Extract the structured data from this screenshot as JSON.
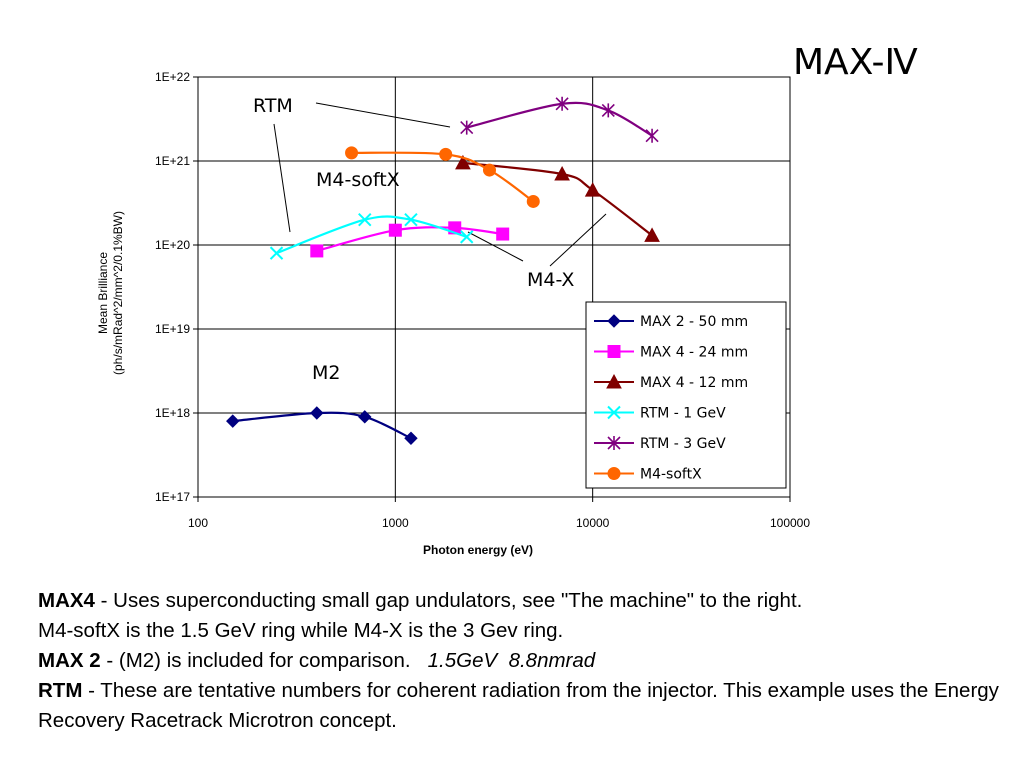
{
  "slide": {
    "title": "MAX-Ⅳ",
    "paragraphs": {
      "p1_bold": "MAX4",
      "p1_text": " - Uses superconducting small gap undulators, see \"The machine\" to the right.",
      "p2_text": "M4-softX is the 1.5 GeV ring while M4-X is the 3 Gev ring.",
      "p3_bold": "MAX 2",
      "p3_text": " - (M2) is included for comparison.",
      "p3_italic_1": "1.5GeV",
      "p3_italic_2": "8.8nmrad",
      "p4_bold": "RTM",
      "p4_text": " - These are tentative numbers for coherent radiation from the injector. This example uses the Energy Recovery Racetrack Microtron concept."
    }
  },
  "chart_data": {
    "type": "line",
    "xlabel": "Photon energy (eV)",
    "ylabel_line1": "Mean Brilliance",
    "ylabel_line2": "(ph/s/mRad^2/mm^2/0.1%BW)",
    "x_scale": "log",
    "y_scale": "log",
    "xlim": [
      100,
      100000
    ],
    "ylim": [
      1e+17,
      1e+22
    ],
    "x_ticks": [
      {
        "v": 100,
        "label": "100"
      },
      {
        "v": 1000,
        "label": "1000"
      },
      {
        "v": 10000,
        "label": "10000"
      },
      {
        "v": 100000,
        "label": "100000"
      }
    ],
    "y_ticks": [
      {
        "v": 1e+17,
        "label": "1E+17"
      },
      {
        "v": 1e+18,
        "label": "1E+18"
      },
      {
        "v": 1e+19,
        "label": "1E+19"
      },
      {
        "v": 1e+20,
        "label": "1E+20"
      },
      {
        "v": 1e+21,
        "label": "1E+21"
      },
      {
        "v": 1e+22,
        "label": "1E+22"
      }
    ],
    "grid": "major gridlines on both axes",
    "legend_position": "bottom-right",
    "series": [
      {
        "name": "MAX 2 - 50 mm",
        "color": "#000080",
        "marker": "diamond",
        "points": [
          [
            150,
            8e+17
          ],
          [
            400,
            1e+18
          ],
          [
            700,
            9e+17
          ],
          [
            1200,
            5e+17
          ]
        ]
      },
      {
        "name": "MAX 4 - 24 mm",
        "color": "#ff00ff",
        "marker": "square",
        "points": [
          [
            400,
            8.5e+19
          ],
          [
            1000,
            1.5e+20
          ],
          [
            2000,
            1.6e+20
          ],
          [
            3500,
            1.35e+20
          ]
        ]
      },
      {
        "name": "MAX 4 - 12 mm",
        "color": "#800000",
        "marker": "triangle",
        "points": [
          [
            2200,
            9.5e+20
          ],
          [
            7000,
            7e+20
          ],
          [
            10000,
            4.5e+20
          ],
          [
            20000,
            1.3e+20
          ]
        ]
      },
      {
        "name": "RTM - 1 GeV",
        "color": "#00ffff",
        "marker": "x",
        "points": [
          [
            250,
            8e+19
          ],
          [
            700,
            2e+20
          ],
          [
            1200,
            2e+20
          ],
          [
            2300,
            1.25e+20
          ]
        ]
      },
      {
        "name": "RTM - 3 GeV",
        "color": "#800080",
        "marker": "star",
        "points": [
          [
            2300,
            2.5e+21
          ],
          [
            7000,
            4.8e+21
          ],
          [
            12000,
            4e+21
          ],
          [
            20000,
            2e+21
          ]
        ]
      },
      {
        "name": "M4-softX",
        "color": "#ff6600",
        "marker": "circle",
        "points": [
          [
            600,
            1.25e+21
          ],
          [
            1800,
            1.2e+21
          ],
          [
            3000,
            7.8e+20
          ],
          [
            5000,
            3.3e+20
          ]
        ]
      }
    ],
    "annotations": [
      {
        "text": "RTM"
      },
      {
        "text": "M4-softX"
      },
      {
        "text": "M4-X"
      },
      {
        "text": "M2"
      }
    ]
  }
}
